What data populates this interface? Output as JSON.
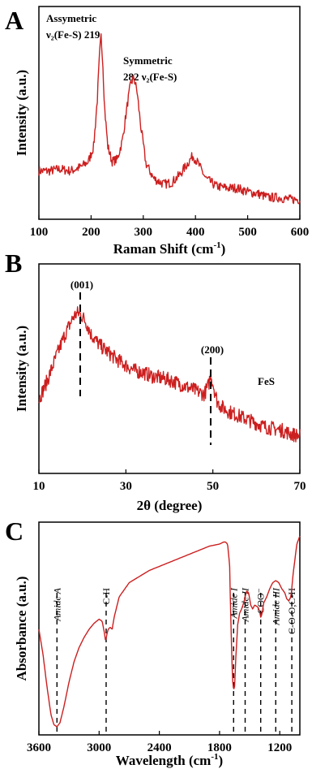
{
  "chart_data": [
    {
      "panel_letter": "A",
      "type": "line",
      "xlabel": "Raman Shift (cm",
      "xlabel_sup": "-1",
      "xlabel_tail": ")",
      "ylabel": "Intensity (a.u.)",
      "xlim": [
        100,
        600
      ],
      "ylim": [
        0,
        1
      ],
      "xticks": [
        "100",
        "200",
        "300",
        "400",
        "500",
        "600"
      ],
      "line_color": "#cc1f1f",
      "annotations": [
        {
          "lines": [
            "Assymetric",
            "ν₂(Fe-S) 219"
          ]
        },
        {
          "lines": [
            "Symmetric",
            "282 ν₂(Fe-S)"
          ]
        }
      ],
      "series": [
        {
          "x": [
            100,
            120,
            140,
            160,
            180,
            195,
            205,
            212,
            216,
            219,
            222,
            226,
            232,
            240,
            250,
            260,
            270,
            276,
            282,
            288,
            295,
            305,
            320,
            340,
            355,
            370,
            385,
            395,
            405,
            420,
            440,
            460,
            480,
            500,
            520,
            540,
            560,
            580,
            600
          ],
          "y": [
            0.22,
            0.22,
            0.23,
            0.22,
            0.24,
            0.27,
            0.35,
            0.6,
            0.82,
            0.93,
            0.82,
            0.55,
            0.35,
            0.27,
            0.28,
            0.38,
            0.58,
            0.68,
            0.71,
            0.64,
            0.46,
            0.26,
            0.18,
            0.15,
            0.16,
            0.2,
            0.26,
            0.3,
            0.26,
            0.18,
            0.14,
            0.13,
            0.13,
            0.11,
            0.1,
            0.08,
            0.08,
            0.07,
            0.07
          ]
        }
      ]
    },
    {
      "panel_letter": "B",
      "type": "line",
      "xlabel": "2θ (degree)",
      "ylabel": "Intensity (a.u.)",
      "xlim": [
        10,
        70
      ],
      "ylim": [
        0,
        1
      ],
      "xticks": [
        "10",
        "30",
        "50",
        "70"
      ],
      "line_color": "#cc1f1f",
      "annotations": [
        {
          "lines": [
            "(001)"
          ]
        },
        {
          "lines": [
            "(200)"
          ]
        },
        {
          "lines": [
            "FeS"
          ]
        }
      ],
      "reference_lines_x": [
        19.5,
        49.5
      ],
      "series": [
        {
          "x": [
            10,
            12,
            14,
            16,
            18,
            19,
            20,
            21,
            22,
            24,
            26,
            28,
            30,
            32,
            34,
            36,
            38,
            40,
            42,
            44,
            46,
            48,
            49,
            49.5,
            50,
            51,
            52,
            54,
            56,
            58,
            60,
            62,
            64,
            66,
            68,
            70
          ],
          "y": [
            0.34,
            0.45,
            0.58,
            0.7,
            0.8,
            0.82,
            0.8,
            0.76,
            0.7,
            0.64,
            0.6,
            0.56,
            0.53,
            0.5,
            0.49,
            0.47,
            0.46,
            0.45,
            0.43,
            0.41,
            0.39,
            0.37,
            0.42,
            0.48,
            0.43,
            0.33,
            0.3,
            0.27,
            0.25,
            0.23,
            0.21,
            0.19,
            0.18,
            0.17,
            0.15,
            0.14
          ]
        }
      ]
    },
    {
      "panel_letter": "C",
      "type": "line",
      "xlabel": "Wavelength (cm",
      "xlabel_sup": "-1",
      "xlabel_tail": ")",
      "ylabel": "Absorbance (a.u.)",
      "xlim": [
        3600,
        1000
      ],
      "ylim": [
        0,
        1
      ],
      "xticks": [
        "3600",
        "3000",
        "2400",
        "1800",
        "1200"
      ],
      "line_color": "#cc1f1f",
      "reference_lines": [
        {
          "x": 3420,
          "label": "Amide A",
          "italic": true
        },
        {
          "x": 2930,
          "label": "C-H",
          "italic": false
        },
        {
          "x": 1660,
          "label": "Amide I",
          "italic": true
        },
        {
          "x": 1545,
          "label": "Amide II",
          "italic": true
        },
        {
          "x": 1390,
          "label": "COO⁻",
          "italic": false
        },
        {
          "x": 1240,
          "label": "Amide III",
          "italic": true
        },
        {
          "x": 1080,
          "label": "C-O-O,C-H",
          "italic": false
        }
      ],
      "series": [
        {
          "x": [
            3600,
            3560,
            3520,
            3480,
            3450,
            3420,
            3390,
            3350,
            3300,
            3250,
            3200,
            3150,
            3100,
            3050,
            3000,
            2970,
            2950,
            2935,
            2925,
            2910,
            2890,
            2870,
            2850,
            2800,
            2700,
            2600,
            2500,
            2400,
            2300,
            2200,
            2100,
            2000,
            1900,
            1800,
            1760,
            1740,
            1720,
            1700,
            1690,
            1680,
            1670,
            1660,
            1650,
            1640,
            1620,
            1600,
            1580,
            1560,
            1545,
            1530,
            1510,
            1490,
            1470,
            1450,
            1420,
            1400,
            1390,
            1380,
            1360,
            1330,
            1300,
            1270,
            1240,
            1210,
            1180,
            1150,
            1130,
            1110,
            1090,
            1080,
            1070,
            1050,
            1030,
            1000
          ],
          "y": [
            0.5,
            0.38,
            0.22,
            0.08,
            0.03,
            0.02,
            0.04,
            0.12,
            0.24,
            0.34,
            0.41,
            0.46,
            0.5,
            0.53,
            0.55,
            0.54,
            0.49,
            0.44,
            0.47,
            0.5,
            0.51,
            0.5,
            0.56,
            0.66,
            0.73,
            0.76,
            0.79,
            0.81,
            0.83,
            0.85,
            0.87,
            0.89,
            0.91,
            0.92,
            0.93,
            0.93,
            0.92,
            0.82,
            0.6,
            0.4,
            0.25,
            0.2,
            0.22,
            0.34,
            0.52,
            0.58,
            0.6,
            0.63,
            0.66,
            0.69,
            0.68,
            0.62,
            0.6,
            0.62,
            0.61,
            0.59,
            0.56,
            0.57,
            0.63,
            0.66,
            0.7,
            0.73,
            0.74,
            0.73,
            0.7,
            0.68,
            0.65,
            0.64,
            0.66,
            0.7,
            0.76,
            0.84,
            0.92,
            0.96
          ]
        }
      ]
    }
  ]
}
